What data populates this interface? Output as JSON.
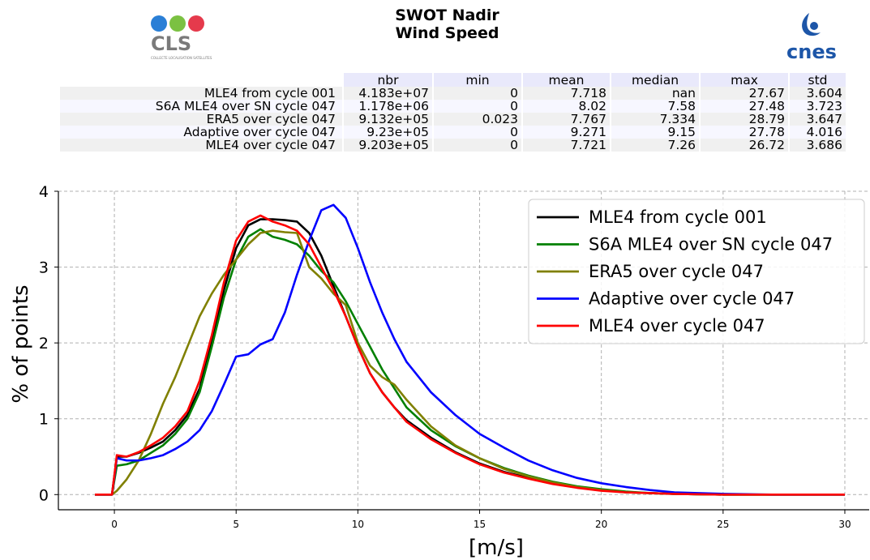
{
  "header": {
    "title_line1": "SWOT Nadir",
    "title_line2": "Wind Speed",
    "logo_left_text": "CLS",
    "logo_left_subtext": "COLLECTE LOCALISATION SATELLITES",
    "logo_right_text": "cnes"
  },
  "stats_table": {
    "columns": [
      "nbr",
      "min",
      "mean",
      "median",
      "max",
      "std"
    ],
    "rows": [
      {
        "label": "MLE4 from cycle 001",
        "values": [
          "4.183e+07",
          "0",
          "7.718",
          "nan",
          "27.67",
          "3.604"
        ]
      },
      {
        "label": "S6A MLE4 over SN cycle 047",
        "values": [
          "1.178e+06",
          "0",
          "8.02",
          "7.58",
          "27.48",
          "3.723"
        ]
      },
      {
        "label": "ERA5 over cycle 047",
        "values": [
          "9.132e+05",
          "0.023",
          "7.767",
          "7.334",
          "28.79",
          "3.647"
        ]
      },
      {
        "label": "Adaptive over cycle 047",
        "values": [
          "9.23e+05",
          "0",
          "9.271",
          "9.15",
          "27.78",
          "4.016"
        ]
      },
      {
        "label": "MLE4 over cycle 047",
        "values": [
          "9.203e+05",
          "0",
          "7.721",
          "7.26",
          "26.72",
          "3.686"
        ]
      }
    ]
  },
  "chart_data": {
    "type": "line",
    "xlabel": "[m/s]",
    "ylabel": "% of points",
    "xlim": [
      -2.3,
      31.0
    ],
    "ylim": [
      -0.2,
      4.0
    ],
    "xticks": [
      0,
      5,
      10,
      15,
      20,
      25,
      30
    ],
    "yticks": [
      0,
      1,
      2,
      3,
      4
    ],
    "grid": true,
    "legend_position": "top-right",
    "series": [
      {
        "name": "MLE4 from cycle 001",
        "color": "#000000",
        "x": [
          -0.8,
          -0.1,
          0.1,
          0.5,
          1.0,
          1.5,
          2.0,
          2.5,
          3.0,
          3.5,
          4.0,
          4.5,
          5.0,
          5.5,
          6.0,
          6.5,
          7.0,
          7.5,
          8.0,
          8.5,
          9.0,
          9.5,
          10.0,
          10.5,
          11.0,
          11.5,
          12.0,
          13.0,
          14.0,
          15.0,
          16.0,
          17.0,
          18.0,
          19.0,
          20.0,
          21.0,
          22.0,
          23.0,
          25.0,
          27.0,
          30.0
        ],
        "y": [
          0,
          0,
          0.5,
          0.5,
          0.55,
          0.62,
          0.7,
          0.85,
          1.05,
          1.4,
          2.0,
          2.7,
          3.25,
          3.55,
          3.63,
          3.63,
          3.62,
          3.6,
          3.45,
          3.15,
          2.75,
          2.35,
          1.95,
          1.6,
          1.35,
          1.15,
          0.98,
          0.75,
          0.56,
          0.41,
          0.3,
          0.22,
          0.15,
          0.1,
          0.06,
          0.03,
          0.02,
          0.01,
          0.0,
          0.0,
          0.0
        ]
      },
      {
        "name": "S6A MLE4 over SN cycle 047",
        "color": "#008000",
        "x": [
          -0.8,
          -0.1,
          0.1,
          0.5,
          1.0,
          1.5,
          2.0,
          2.5,
          3.0,
          3.5,
          4.0,
          4.5,
          5.0,
          5.5,
          6.0,
          6.5,
          7.0,
          7.5,
          8.0,
          8.5,
          9.0,
          9.5,
          10.0,
          10.5,
          11.0,
          11.5,
          12.0,
          13.0,
          14.0,
          15.0,
          16.0,
          17.0,
          18.0,
          19.0,
          20.0,
          21.0,
          22.0,
          23.0,
          25.0,
          27.0,
          30.0
        ],
        "y": [
          0,
          0,
          0.38,
          0.4,
          0.45,
          0.55,
          0.65,
          0.8,
          1.0,
          1.35,
          1.95,
          2.6,
          3.1,
          3.4,
          3.5,
          3.4,
          3.36,
          3.3,
          3.15,
          2.95,
          2.8,
          2.55,
          2.25,
          1.95,
          1.65,
          1.4,
          1.15,
          0.85,
          0.64,
          0.48,
          0.35,
          0.25,
          0.17,
          0.11,
          0.07,
          0.04,
          0.02,
          0.01,
          0.0,
          0.0,
          0.0
        ]
      },
      {
        "name": "ERA5 over cycle 047",
        "color": "#808000",
        "x": [
          -0.8,
          -0.1,
          0.1,
          0.5,
          1.0,
          1.5,
          2.0,
          2.5,
          3.0,
          3.5,
          4.0,
          4.5,
          5.0,
          5.5,
          6.0,
          6.5,
          7.0,
          7.5,
          8.0,
          8.5,
          9.0,
          9.5,
          10.0,
          10.5,
          11.0,
          11.5,
          12.0,
          13.0,
          14.0,
          15.0,
          16.0,
          17.0,
          18.0,
          19.0,
          20.0,
          21.0,
          22.0,
          23.0,
          25.0,
          27.0,
          30.0
        ],
        "y": [
          0,
          0,
          0.05,
          0.2,
          0.45,
          0.8,
          1.2,
          1.55,
          1.95,
          2.35,
          2.65,
          2.9,
          3.1,
          3.3,
          3.45,
          3.48,
          3.46,
          3.45,
          3.0,
          2.85,
          2.65,
          2.5,
          2.0,
          1.7,
          1.55,
          1.45,
          1.25,
          0.9,
          0.65,
          0.48,
          0.34,
          0.24,
          0.16,
          0.1,
          0.06,
          0.03,
          0.02,
          0.01,
          0.0,
          0.0,
          0.0
        ]
      },
      {
        "name": "Adaptive over cycle 047",
        "color": "#0000ff",
        "x": [
          -0.8,
          -0.1,
          0.1,
          0.5,
          1.0,
          1.5,
          2.0,
          2.5,
          3.0,
          3.5,
          4.0,
          4.5,
          5.0,
          5.5,
          6.0,
          6.5,
          7.0,
          7.5,
          8.0,
          8.5,
          9.0,
          9.5,
          10.0,
          10.5,
          11.0,
          11.5,
          12.0,
          13.0,
          14.0,
          15.0,
          16.0,
          17.0,
          18.0,
          19.0,
          20.0,
          21.0,
          22.0,
          23.0,
          25.0,
          27.0,
          30.0
        ],
        "y": [
          0,
          0,
          0.48,
          0.45,
          0.45,
          0.48,
          0.52,
          0.6,
          0.7,
          0.85,
          1.1,
          1.45,
          1.82,
          1.85,
          1.98,
          2.05,
          2.4,
          2.9,
          3.35,
          3.75,
          3.82,
          3.65,
          3.25,
          2.8,
          2.4,
          2.05,
          1.75,
          1.35,
          1.05,
          0.8,
          0.62,
          0.45,
          0.32,
          0.22,
          0.15,
          0.1,
          0.06,
          0.03,
          0.01,
          0.0,
          0.0
        ]
      },
      {
        "name": "MLE4 over cycle 047",
        "color": "#ff0000",
        "x": [
          -0.8,
          -0.1,
          0.1,
          0.5,
          1.0,
          1.5,
          2.0,
          2.5,
          3.0,
          3.5,
          4.0,
          4.5,
          5.0,
          5.5,
          6.0,
          6.5,
          7.0,
          7.5,
          8.0,
          8.5,
          9.0,
          9.5,
          10.0,
          10.5,
          11.0,
          11.5,
          12.0,
          13.0,
          14.0,
          15.0,
          16.0,
          17.0,
          18.0,
          19.0,
          20.0,
          21.0,
          22.0,
          23.0,
          25.0,
          27.0,
          30.0
        ],
        "y": [
          0,
          0,
          0.52,
          0.5,
          0.56,
          0.65,
          0.75,
          0.9,
          1.1,
          1.5,
          2.1,
          2.8,
          3.35,
          3.6,
          3.68,
          3.6,
          3.55,
          3.48,
          3.3,
          3.0,
          2.7,
          2.35,
          1.95,
          1.6,
          1.35,
          1.15,
          0.96,
          0.73,
          0.55,
          0.4,
          0.29,
          0.21,
          0.14,
          0.09,
          0.05,
          0.03,
          0.02,
          0.01,
          0.0,
          0.0,
          0.0
        ]
      }
    ]
  }
}
